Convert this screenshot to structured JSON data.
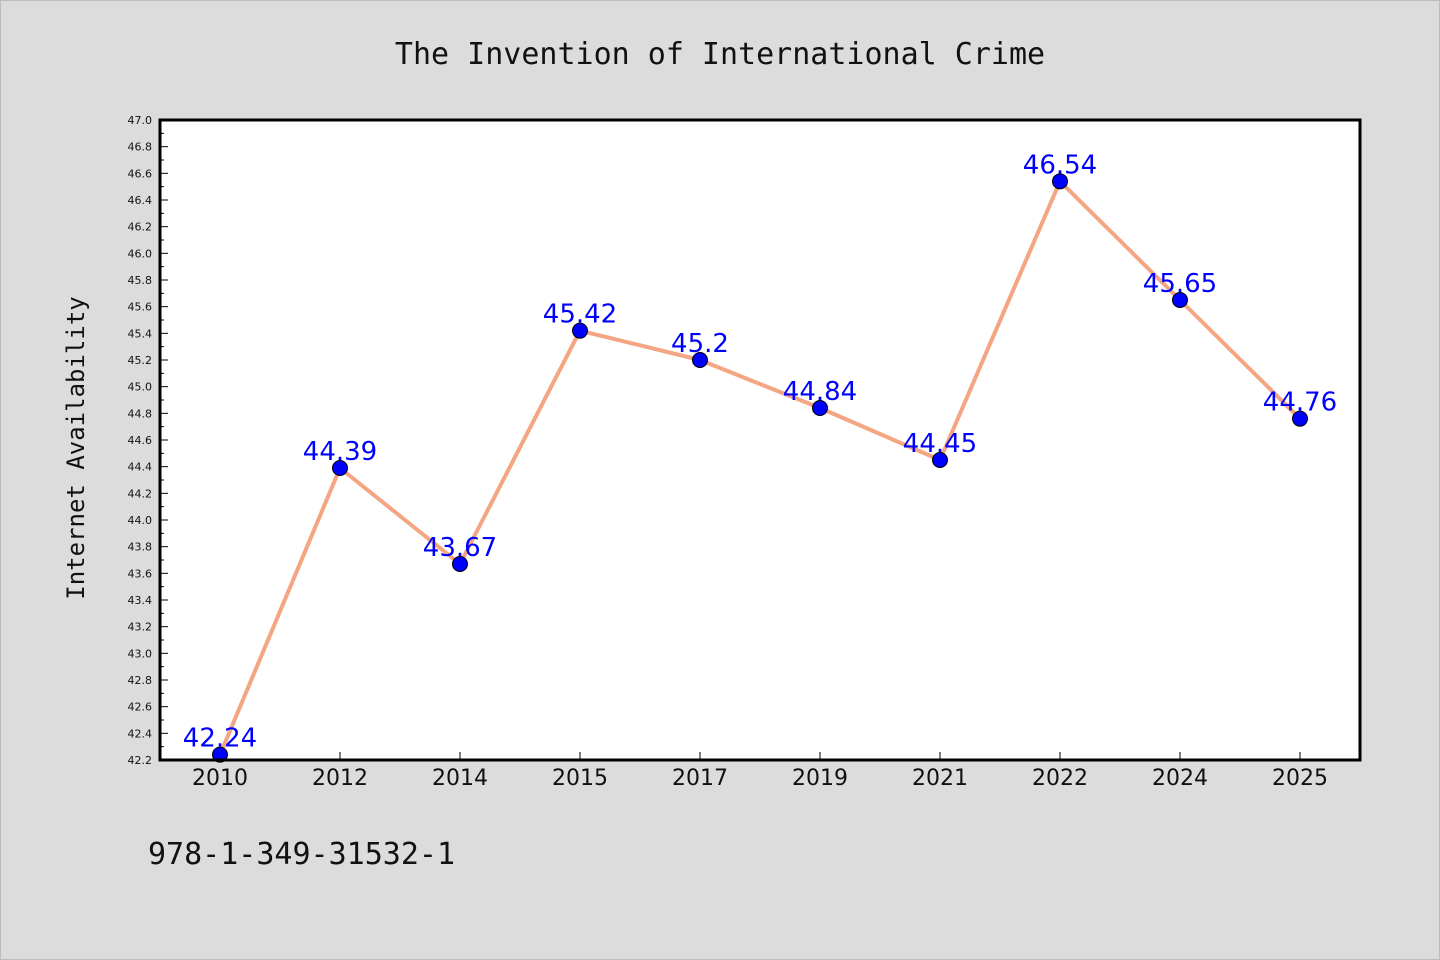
{
  "chart_data": {
    "type": "line",
    "title": "The Invention of International Crime",
    "xlabel": "",
    "ylabel": "Internet Availability",
    "categories": [
      "2010",
      "2012",
      "2014",
      "2015",
      "2017",
      "2019",
      "2021",
      "2022",
      "2024",
      "2025"
    ],
    "series": [
      {
        "values": [
          42.24,
          44.39,
          43.67,
          45.42,
          45.2,
          44.84,
          44.45,
          46.54,
          45.65,
          44.76
        ],
        "data_labels": [
          "42.24",
          "44.39",
          "43.67",
          "45.42",
          "45.2",
          "44.84",
          "44.45",
          "46.54",
          "45.65",
          "44.76"
        ],
        "line_color": "#f4a582",
        "marker_color": "#0000ff",
        "label_color": "#0000ff"
      }
    ],
    "ylim": [
      42.2,
      47.0
    ],
    "yticks": [
      "42.2",
      "42.4",
      "42.6",
      "42.8",
      "43.0",
      "43.2",
      "43.4",
      "43.6",
      "43.8",
      "44.0",
      "44.2",
      "44.4",
      "44.6",
      "44.8",
      "45.0",
      "45.2",
      "45.4",
      "45.6",
      "45.8",
      "46.0",
      "46.2",
      "46.4",
      "46.6",
      "46.8",
      "47.0"
    ],
    "grid": false,
    "legend": "none"
  },
  "footer": {
    "isbn": "978-1-349-31532-1"
  },
  "colors": {
    "background": "#dcdcdc",
    "plot_background": "#ffffff"
  }
}
